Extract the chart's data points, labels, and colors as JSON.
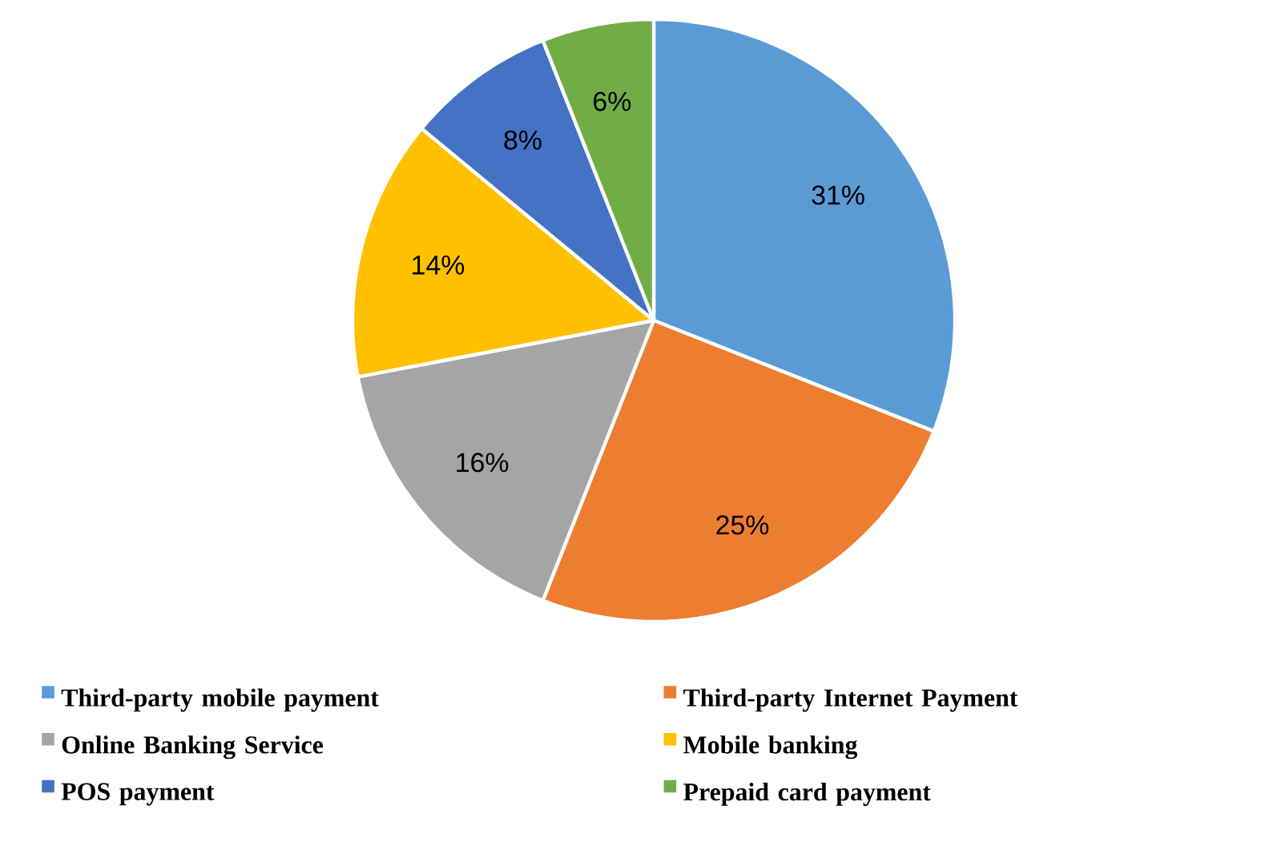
{
  "chart_data": {
    "type": "pie",
    "categories": [
      "Third-party mobile payment",
      "Third-party Internet Payment",
      "Online Banking Service",
      "Mobile banking",
      "POS payment",
      "Prepaid card payment"
    ],
    "values": [
      31,
      25,
      16,
      14,
      8,
      6
    ],
    "value_labels": [
      "31%",
      "25%",
      "16%",
      "14%",
      "8%",
      "6%"
    ],
    "colors": [
      "#5b9bd5",
      "#ed7d31",
      "#a5a5a5",
      "#ffc000",
      "#4472c4",
      "#70ad47"
    ],
    "legend": "bottom"
  }
}
